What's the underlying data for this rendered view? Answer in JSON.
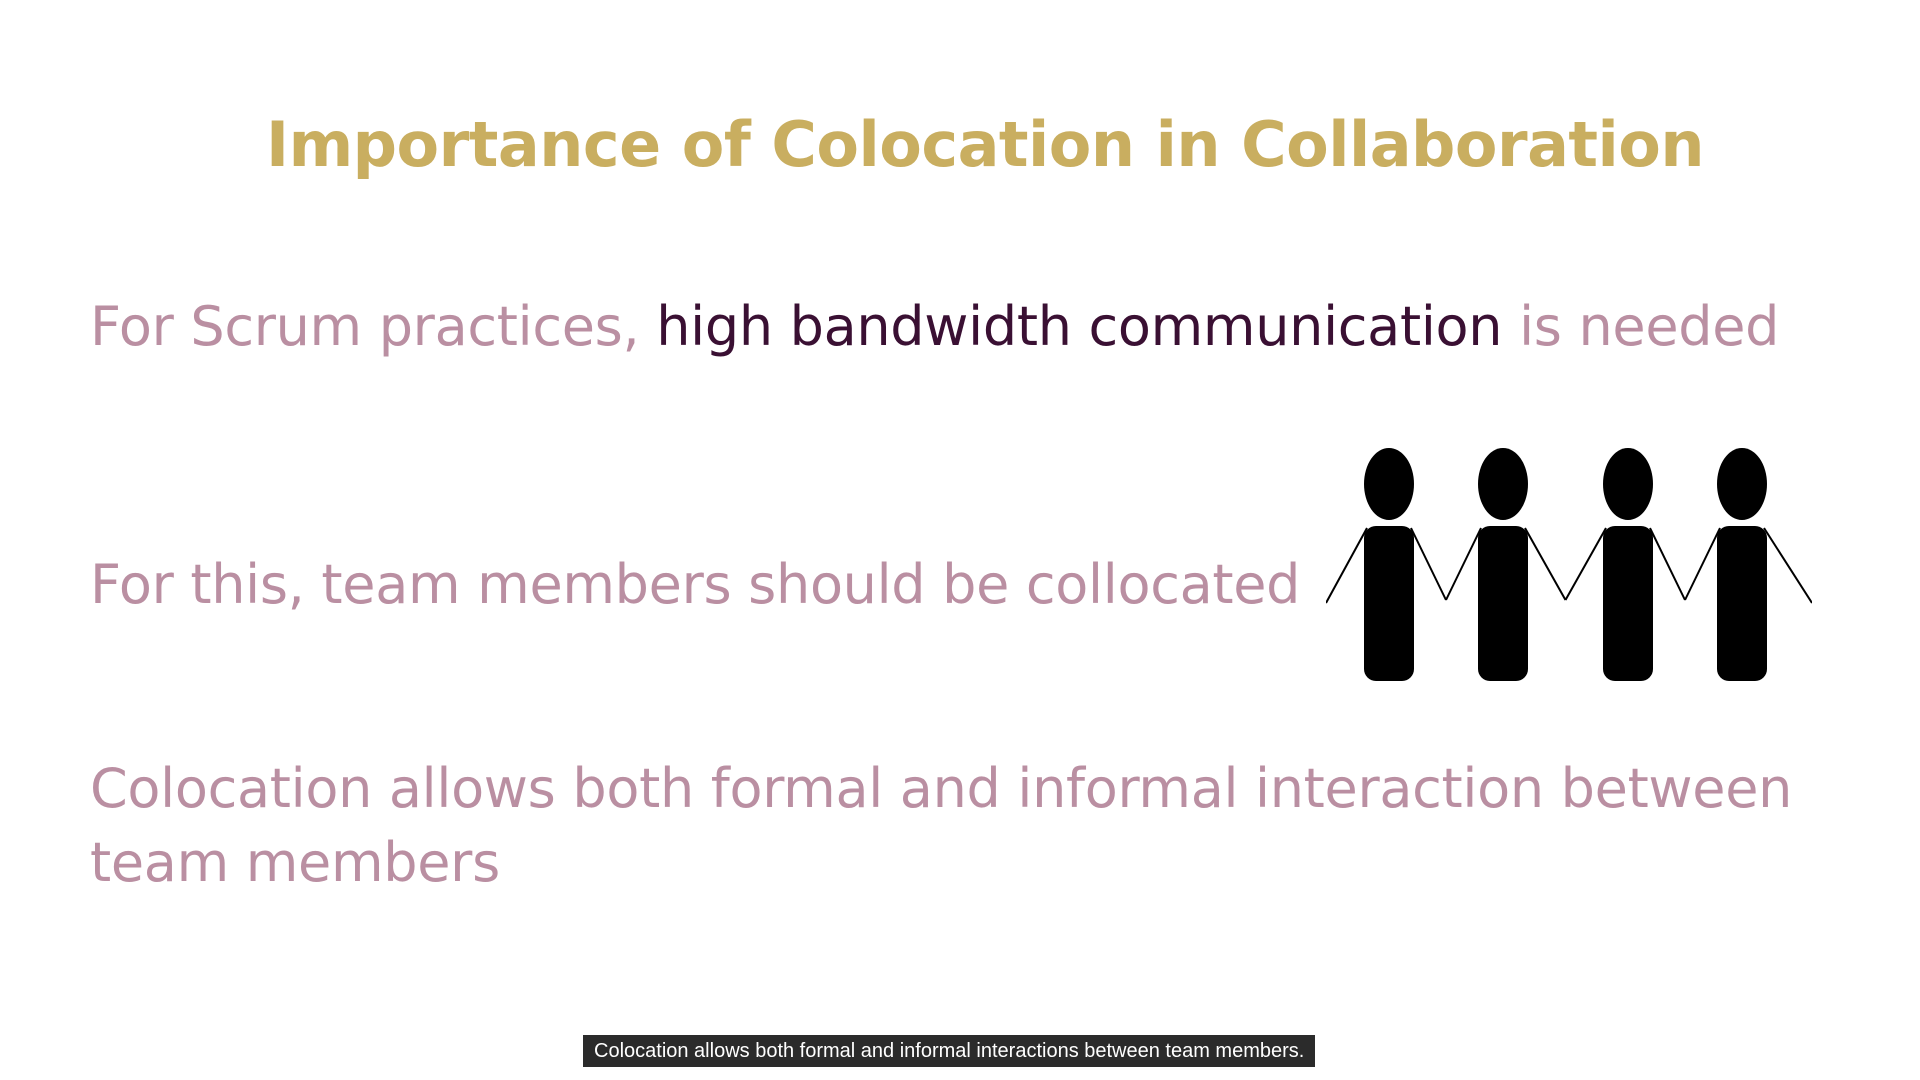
{
  "slide": {
    "title": "Importance of Colocation in Collaboration",
    "line1": {
      "prefix": "For Scrum practices, ",
      "highlight": "high bandwidth communication",
      "suffix": " is needed"
    },
    "line2": "For this, team members should be collocated",
    "line3": "Colocation allows both formal and informal interaction between team members",
    "illustration_icon": "people-holding-hands-icon"
  },
  "caption": {
    "text": "Colocation allows both formal and informal interactions between team members."
  },
  "colors": {
    "title": "#C9AE60",
    "body": "#BA8FA2",
    "highlight": "#3A1033",
    "figure": "#000000",
    "caption_bg": "#2B2B2B",
    "caption_text": "#FFFFFF"
  }
}
